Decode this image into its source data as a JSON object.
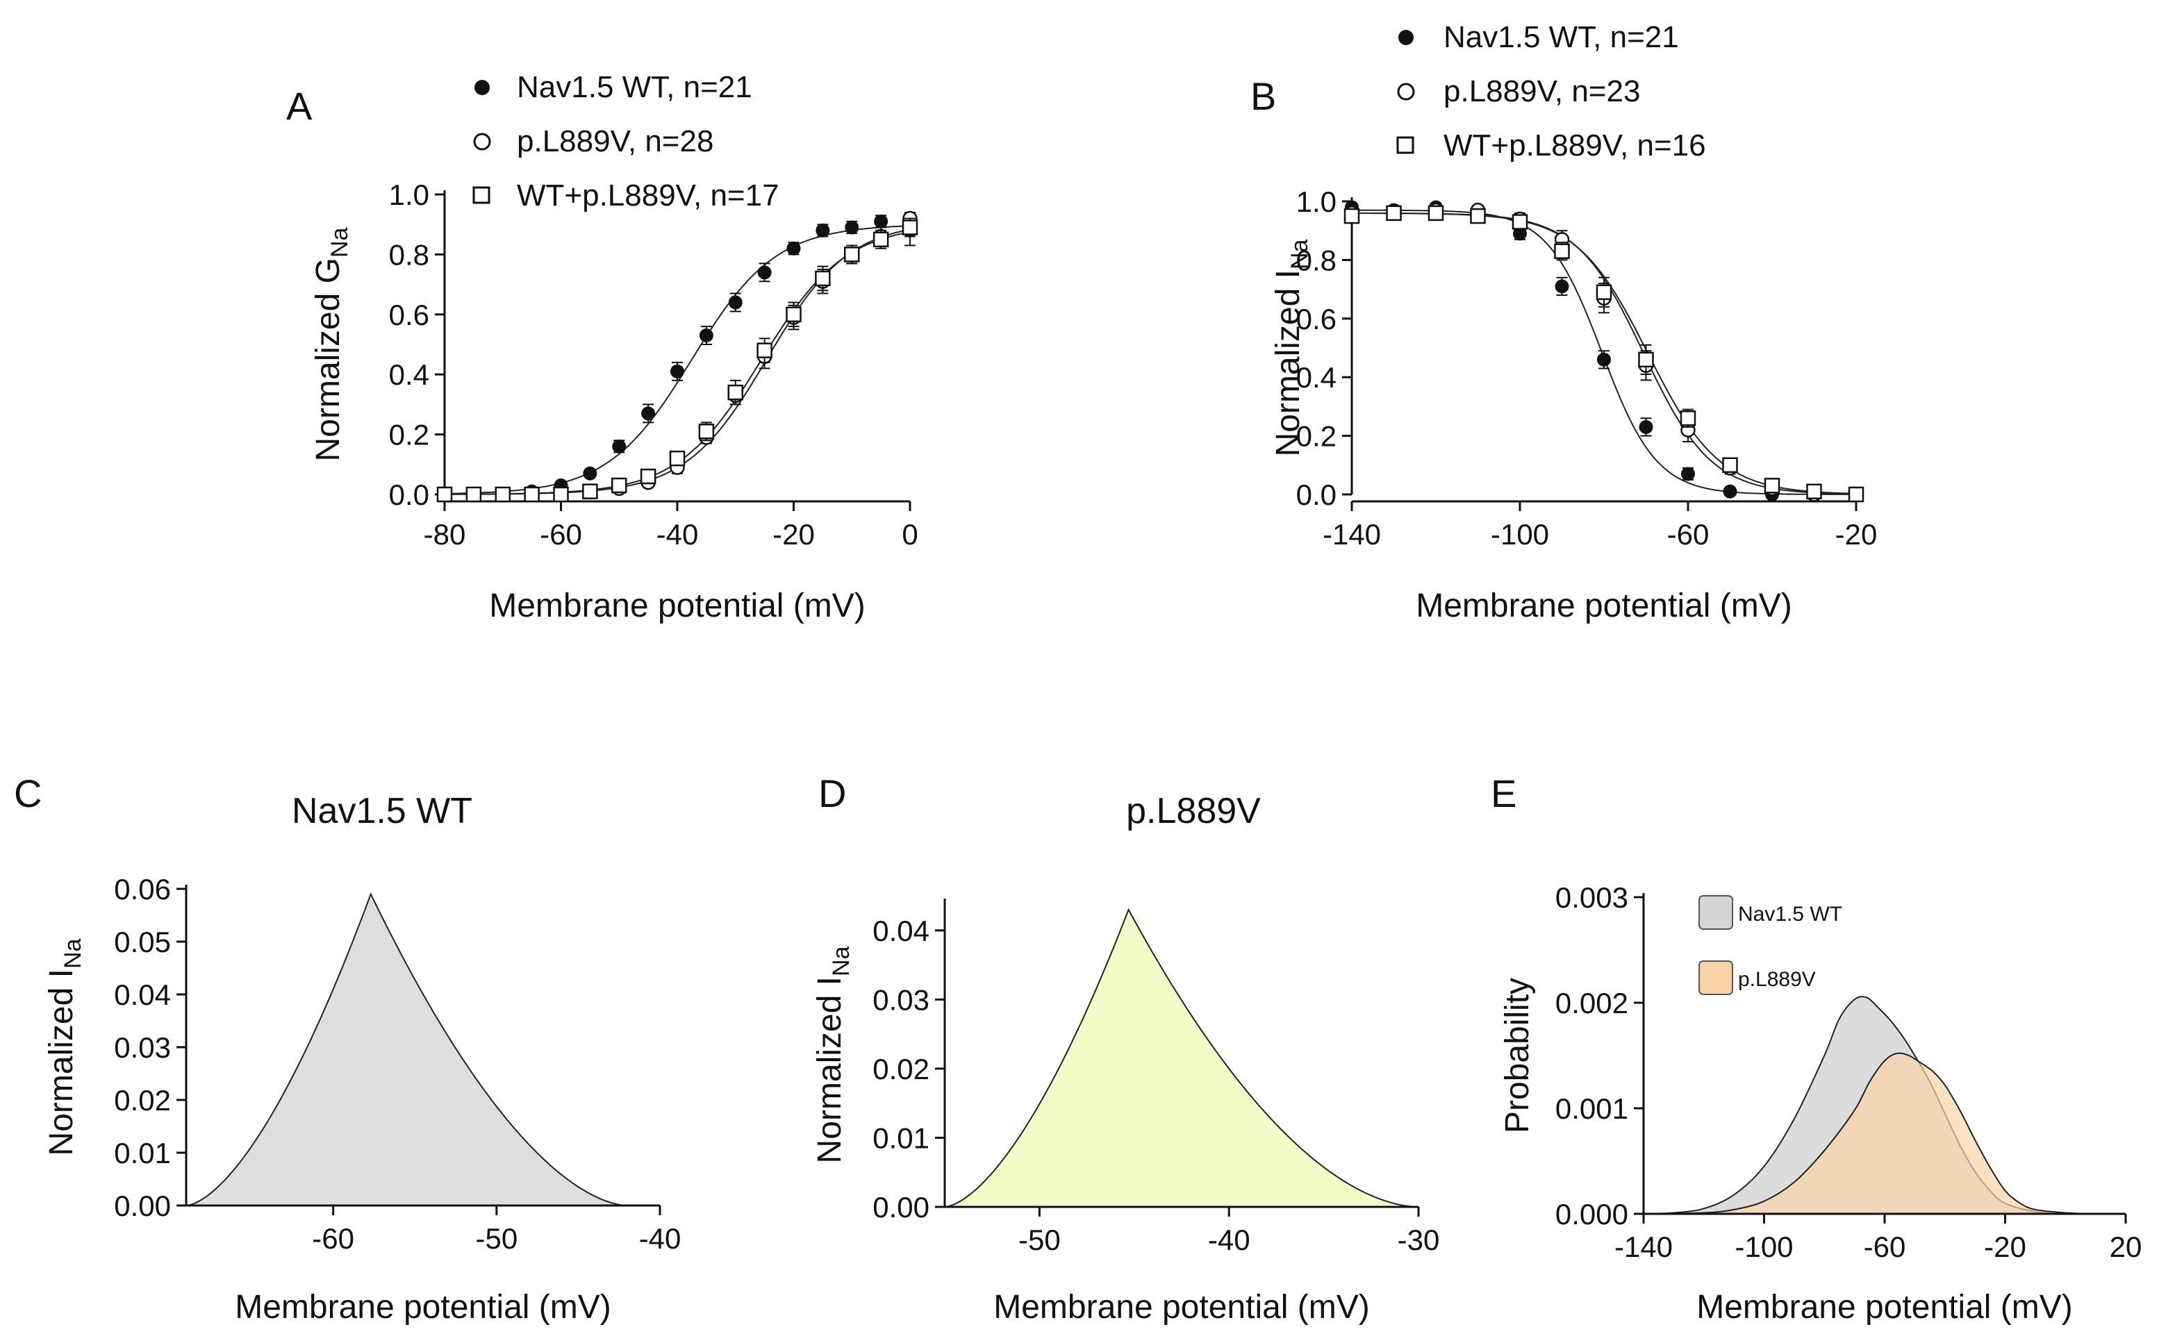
{
  "chart_data": [
    {
      "id": "A",
      "type": "scatter",
      "panel_label": "A",
      "xlabel": "Membrane potential (mV)",
      "ylabel": "Normalized G",
      "ylabel_sub": "Na",
      "xlim": [
        -80,
        0
      ],
      "ylim": [
        0,
        1.0
      ],
      "xticks": [
        -80,
        -60,
        -40,
        -20,
        0
      ],
      "yticks": [
        0.0,
        0.2,
        0.4,
        0.6,
        0.8,
        1.0
      ],
      "xtick_labels": [
        "-80",
        "-60",
        "-40",
        "-20",
        "0"
      ],
      "ytick_labels": [
        "0.0",
        "0.2",
        "0.4",
        "0.6",
        "0.8",
        "1.0"
      ],
      "legend_position": "top",
      "series": [
        {
          "name": "Nav1.5 WT, n=21",
          "marker": "filled-circle",
          "x": [
            -80,
            -75,
            -70,
            -65,
            -60,
            -55,
            -50,
            -45,
            -40,
            -35,
            -30,
            -25,
            -20,
            -15,
            -10,
            -5,
            0
          ],
          "y": [
            0,
            0,
            0,
            0.01,
            0.03,
            0.07,
            0.16,
            0.27,
            0.41,
            0.53,
            0.64,
            0.74,
            0.82,
            0.88,
            0.89,
            0.91,
            0.88
          ],
          "err": [
            0,
            0,
            0,
            0,
            0.01,
            0.01,
            0.02,
            0.03,
            0.03,
            0.03,
            0.03,
            0.03,
            0.02,
            0.02,
            0.02,
            0.02,
            0.05
          ],
          "fit_v_half": -37.5,
          "fit_k": 7.2,
          "fit_max": 0.9
        },
        {
          "name": "p.L889V, n=28",
          "marker": "open-circle",
          "x": [
            -80,
            -75,
            -70,
            -65,
            -60,
            -55,
            -50,
            -45,
            -40,
            -35,
            -30,
            -25,
            -20,
            -15,
            -10,
            -5,
            0
          ],
          "y": [
            0,
            0,
            0,
            0,
            0,
            0.01,
            0.02,
            0.04,
            0.09,
            0.19,
            0.33,
            0.46,
            0.59,
            0.71,
            0.8,
            0.86,
            0.92
          ],
          "err": [
            0,
            0,
            0,
            0,
            0,
            0,
            0.01,
            0.01,
            0.02,
            0.02,
            0.03,
            0.04,
            0.04,
            0.04,
            0.03,
            0.03,
            0.02
          ],
          "fit_v_half": -24.5,
          "fit_k": 7.0,
          "fit_max": 0.91
        },
        {
          "name": "WT+p.L889V, n=17",
          "marker": "open-square",
          "x": [
            -80,
            -75,
            -70,
            -65,
            -60,
            -55,
            -50,
            -45,
            -40,
            -35,
            -30,
            -25,
            -20,
            -15,
            -10,
            -5,
            0
          ],
          "y": [
            0,
            0,
            0,
            0,
            0,
            0.01,
            0.03,
            0.06,
            0.12,
            0.21,
            0.34,
            0.48,
            0.6,
            0.72,
            0.8,
            0.85,
            0.89
          ],
          "err": [
            0,
            0,
            0,
            0,
            0,
            0,
            0.01,
            0.01,
            0.02,
            0.03,
            0.04,
            0.04,
            0.04,
            0.04,
            0.03,
            0.03,
            0.03
          ],
          "fit_v_half": -25.5,
          "fit_k": 7.2,
          "fit_max": 0.9
        }
      ]
    },
    {
      "id": "B",
      "type": "scatter",
      "panel_label": "B",
      "xlabel": "Membrane potential (mV)",
      "ylabel": "Normalized I",
      "ylabel_sub": "Na",
      "xlim": [
        -140,
        -20
      ],
      "ylim": [
        0,
        1.0
      ],
      "xticks": [
        -140,
        -100,
        -60,
        -20
      ],
      "yticks": [
        0.0,
        0.2,
        0.4,
        0.6,
        0.8,
        1.0
      ],
      "xtick_labels": [
        "-140",
        "-100",
        "-60",
        "-20"
      ],
      "ytick_labels": [
        "0.0",
        "0.2",
        "0.4",
        "0.6",
        "0.8",
        "1.0"
      ],
      "legend_position": "top",
      "series": [
        {
          "name": "Nav1.5 WT, n=21",
          "marker": "filled-circle",
          "x": [
            -140,
            -130,
            -120,
            -110,
            -100,
            -90,
            -80,
            -70,
            -60,
            -50,
            -40,
            -30,
            -20
          ],
          "y": [
            0.98,
            0.97,
            0.98,
            0.96,
            0.89,
            0.71,
            0.46,
            0.23,
            0.07,
            0.01,
            0,
            0,
            0
          ],
          "err": [
            0,
            0,
            0.01,
            0.01,
            0.02,
            0.03,
            0.03,
            0.03,
            0.02,
            0.01,
            0,
            0,
            0
          ],
          "fit_v_half": -80.5,
          "fit_k": 6.5,
          "fit_max": 0.97
        },
        {
          "name": "p.L889V, n=23",
          "marker": "open-circle",
          "x": [
            -140,
            -130,
            -120,
            -110,
            -100,
            -90,
            -80,
            -70,
            -60,
            -50,
            -40,
            -30,
            -20
          ],
          "y": [
            0.96,
            0.96,
            0.97,
            0.97,
            0.94,
            0.87,
            0.67,
            0.44,
            0.22,
            0.09,
            0.02,
            0,
            0
          ],
          "err": [
            0,
            0,
            0.01,
            0.01,
            0.02,
            0.03,
            0.05,
            0.05,
            0.04,
            0.02,
            0.01,
            0,
            0
          ],
          "fit_v_half": -70.5,
          "fit_k": 8.0,
          "fit_max": 0.96
        },
        {
          "name": "WT+p.L889V, n=16",
          "marker": "open-square",
          "x": [
            -140,
            -130,
            -120,
            -110,
            -100,
            -90,
            -80,
            -70,
            -60,
            -50,
            -40,
            -30,
            -20
          ],
          "y": [
            0.95,
            0.96,
            0.96,
            0.95,
            0.93,
            0.83,
            0.69,
            0.46,
            0.26,
            0.1,
            0.03,
            0.01,
            0
          ],
          "err": [
            0,
            0,
            0.01,
            0.01,
            0.02,
            0.03,
            0.05,
            0.05,
            0.03,
            0.02,
            0.01,
            0,
            0
          ],
          "fit_v_half": -69.5,
          "fit_k": 8.5,
          "fit_max": 0.96
        }
      ]
    },
    {
      "id": "C",
      "type": "area",
      "panel_label": "C",
      "title": "Nav1.5 WT",
      "xlabel": "Membrane potential (mV)",
      "ylabel": "Normalized I",
      "ylabel_sub": "Na",
      "xlim": [
        -69,
        -40
      ],
      "ylim": [
        0,
        0.06
      ],
      "xticks": [
        -60,
        -50,
        -40
      ],
      "yticks": [
        0,
        0.01,
        0.02,
        0.03,
        0.04,
        0.05,
        0.06
      ],
      "xtick_labels": [
        "-60",
        "-50",
        "-40"
      ],
      "ytick_labels": [
        "0.00",
        "0.01",
        "0.02",
        "0.03",
        "0.04",
        "0.05",
        "0.06"
      ],
      "fill_color": "#dedede",
      "window_start": -69,
      "peak_x": -57.7,
      "peak_y": 0.059,
      "window_end": -42,
      "rise_curvature": 1.6,
      "fall_curvature": 1.7
    },
    {
      "id": "D",
      "type": "area",
      "panel_label": "D",
      "title": "p.L889V",
      "xlabel": "Membrane potential (mV)",
      "ylabel": "Normalized I",
      "ylabel_sub": "Na",
      "xlim": [
        -55,
        -30
      ],
      "ylim": [
        0,
        0.044
      ],
      "xticks": [
        -50,
        -40,
        -30
      ],
      "yticks": [
        0,
        0.01,
        0.02,
        0.03,
        0.04
      ],
      "xtick_labels": [
        "-50",
        "-40",
        "-30"
      ],
      "ytick_labels": [
        "0.00",
        "0.01",
        "0.02",
        "0.03",
        "0.04"
      ],
      "fill_color": "#f2fcc8",
      "window_start": -55,
      "peak_x": -45.3,
      "peak_y": 0.043,
      "window_end": -30,
      "rise_curvature": 1.6,
      "fall_curvature": 1.8
    },
    {
      "id": "E",
      "type": "area",
      "panel_label": "E",
      "xlabel": "Membrane potential (mV)",
      "ylabel": "Probability",
      "xlim": [
        -140,
        20
      ],
      "ylim": [
        0,
        0.003
      ],
      "xticks": [
        -140,
        -100,
        -60,
        -20,
        20
      ],
      "yticks": [
        0,
        0.001,
        0.002,
        0.003
      ],
      "xtick_labels": [
        "-140",
        "-100",
        "-60",
        "-20",
        "20"
      ],
      "ytick_labels": [
        "0.000",
        "0.001",
        "0.002",
        "0.003"
      ],
      "legend_position": "top-left",
      "series": [
        {
          "name": "Nav1.5 WT",
          "color": "#d6d6d6",
          "opacity": 0.85,
          "x": [
            -140,
            -130,
            -120,
            -110,
            -100,
            -90,
            -80,
            -75,
            -70,
            -66,
            -62,
            -58,
            -54,
            -50,
            -45,
            -40,
            -35,
            -30,
            -25,
            -20,
            -10,
            0,
            10,
            20
          ],
          "y": [
            0,
            1e-05,
            5e-05,
            0.00018,
            0.00045,
            0.0009,
            0.0015,
            0.00185,
            0.00203,
            0.00205,
            0.00195,
            0.00183,
            0.00168,
            0.0015,
            0.00125,
            0.00095,
            0.00065,
            0.0004,
            0.00022,
            0.0001,
            2e-05,
            0,
            0,
            0
          ]
        },
        {
          "name": "p.L889V",
          "color": "#f9d3a8",
          "opacity": 0.7,
          "x": [
            -140,
            -120,
            -110,
            -100,
            -90,
            -80,
            -70,
            -65,
            -60,
            -56,
            -52,
            -48,
            -44,
            -40,
            -35,
            -30,
            -25,
            -20,
            -15,
            -10,
            0,
            10,
            20
          ],
          "y": [
            0,
            1e-05,
            4e-05,
            0.00012,
            0.0003,
            0.0006,
            0.00098,
            0.00125,
            0.00145,
            0.00152,
            0.0015,
            0.00143,
            0.00135,
            0.00122,
            0.00098,
            0.0007,
            0.00044,
            0.00022,
            0.0001,
            4e-05,
            1e-05,
            0,
            0
          ]
        }
      ]
    }
  ]
}
